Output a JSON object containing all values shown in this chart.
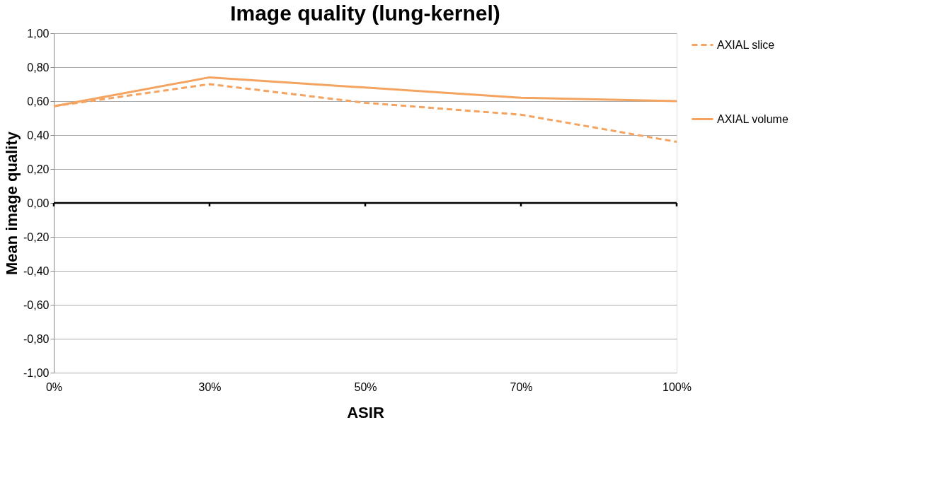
{
  "chart_data": {
    "type": "line",
    "title": "Image quality (lung-kernel)",
    "xlabel": "ASIR",
    "ylabel": "Mean image quality",
    "categories": [
      "0%",
      "30%",
      "50%",
      "70%",
      "100%"
    ],
    "series": [
      {
        "name": "AXIAL slice",
        "color": "#f4a460",
        "line_style": "dashed",
        "values": [
          0.57,
          0.7,
          0.59,
          0.52,
          0.36
        ]
      },
      {
        "name": "AXIAL volume",
        "color": "#f4a460",
        "line_style": "solid",
        "values": [
          0.57,
          0.74,
          0.68,
          0.62,
          0.6
        ]
      }
    ],
    "ylim": [
      -1.0,
      1.0
    ],
    "yticks": [
      {
        "value": -1.0,
        "label": "-1,00"
      },
      {
        "value": -0.8,
        "label": "-0,80"
      },
      {
        "value": -0.6,
        "label": "-0,60"
      },
      {
        "value": -0.4,
        "label": "-0,40"
      },
      {
        "value": -0.2,
        "label": "-0,20"
      },
      {
        "value": 0.0,
        "label": "0,00"
      },
      {
        "value": 0.2,
        "label": "0,20"
      },
      {
        "value": 0.4,
        "label": "0,40"
      },
      {
        "value": 0.6,
        "label": "0,60"
      },
      {
        "value": 0.8,
        "label": "0,80"
      },
      {
        "value": 1.0,
        "label": "1,00"
      }
    ],
    "grid": "y",
    "legend": "right",
    "marker": "none"
  }
}
